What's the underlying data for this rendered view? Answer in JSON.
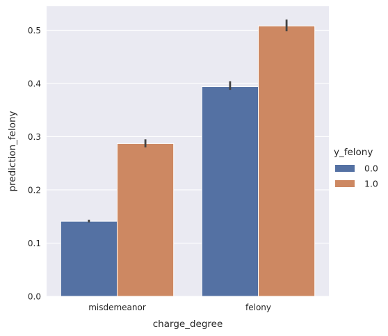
{
  "chart_data": {
    "type": "bar",
    "categories": [
      "misdemeanor",
      "felony"
    ],
    "series": [
      {
        "name": "0.0",
        "color": "#5471a3",
        "values": [
          0.141,
          0.394
        ],
        "ci_low": [
          0.139,
          0.388
        ],
        "ci_high": [
          0.144,
          0.404
        ]
      },
      {
        "name": "1.0",
        "color": "#cd8862",
        "values": [
          0.287,
          0.508
        ],
        "ci_low": [
          0.28,
          0.498
        ],
        "ci_high": [
          0.295,
          0.52
        ]
      }
    ],
    "xlabel": "charge_degree",
    "ylabel": "prediction_felony",
    "ylim": [
      0,
      0.545
    ],
    "yticks": [
      "0.0",
      "0.1",
      "0.2",
      "0.3",
      "0.4",
      "0.5"
    ],
    "ytick_values": [
      0,
      0.1,
      0.2,
      0.3,
      0.4,
      0.5
    ],
    "legend_title": "y_felony",
    "legend_position": "right",
    "grid": true,
    "background_color": "#eaeaf2",
    "grid_color": "#ffffff",
    "error_bar_color": "#424242"
  }
}
